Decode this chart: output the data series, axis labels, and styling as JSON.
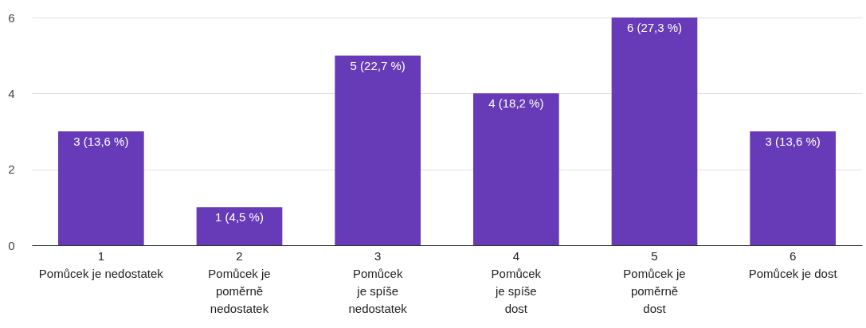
{
  "chart_data": {
    "type": "bar",
    "categories": [
      "1\nPomůcek je nedostatek",
      "2\nPomůcek je\npoměrně\nnedostatek",
      "3\nPomůcek\nje spíše\nnedostatek",
      "4\nPomůcek\nje spíše\ndost",
      "5\nPomůcek je\npoměrně\ndost",
      "6\nPomůcek je dost"
    ],
    "values": [
      3,
      1,
      5,
      4,
      6,
      3
    ],
    "value_labels": [
      "3 (13,6 %)",
      "1 (4,5 %)",
      "5 (22,7 %)",
      "4 (18,2 %)",
      "6 (27,3 %)",
      "3 (13,6 %)"
    ],
    "color": "#673ab7",
    "ylim": [
      0,
      6
    ],
    "yticks": [
      0,
      2,
      4,
      6
    ],
    "grid": "y"
  }
}
